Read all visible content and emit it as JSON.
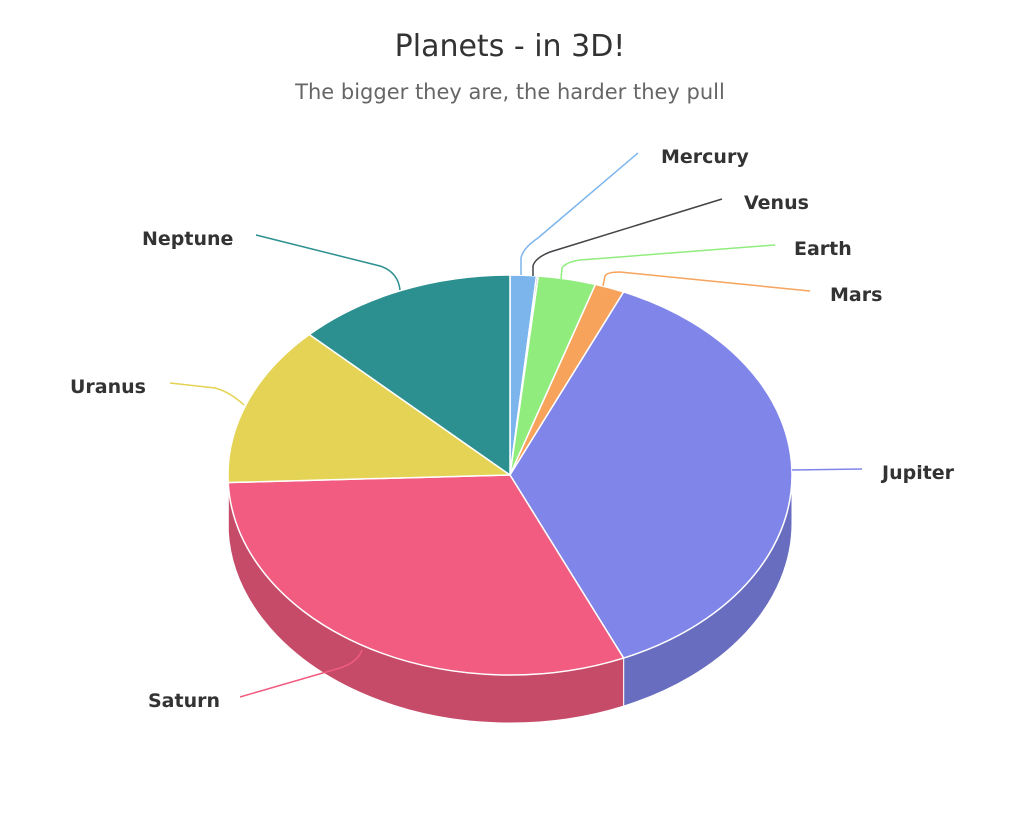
{
  "chart_data": {
    "type": "pie",
    "title": "Planets - in 3D!",
    "subtitle": "The bigger they are, the harder they pull",
    "three_d": true,
    "legend": "none",
    "slices": [
      {
        "name": "Mercury",
        "value": 1.5,
        "color": "#7cb5ec"
      },
      {
        "name": "Venus",
        "value": 0.1,
        "color": "#434348"
      },
      {
        "name": "Earth",
        "value": 3.3,
        "color": "#90ed7d"
      },
      {
        "name": "Mars",
        "value": 1.7,
        "color": "#f7a35c"
      },
      {
        "name": "Jupiter",
        "value": 36.8,
        "color": "#8085e9"
      },
      {
        "name": "Saturn",
        "value": 31.0,
        "color": "#f15c80"
      },
      {
        "name": "Uranus",
        "value": 13.0,
        "color": "#e4d354"
      },
      {
        "name": "Neptune",
        "value": 12.6,
        "color": "#2b908f"
      }
    ]
  }
}
